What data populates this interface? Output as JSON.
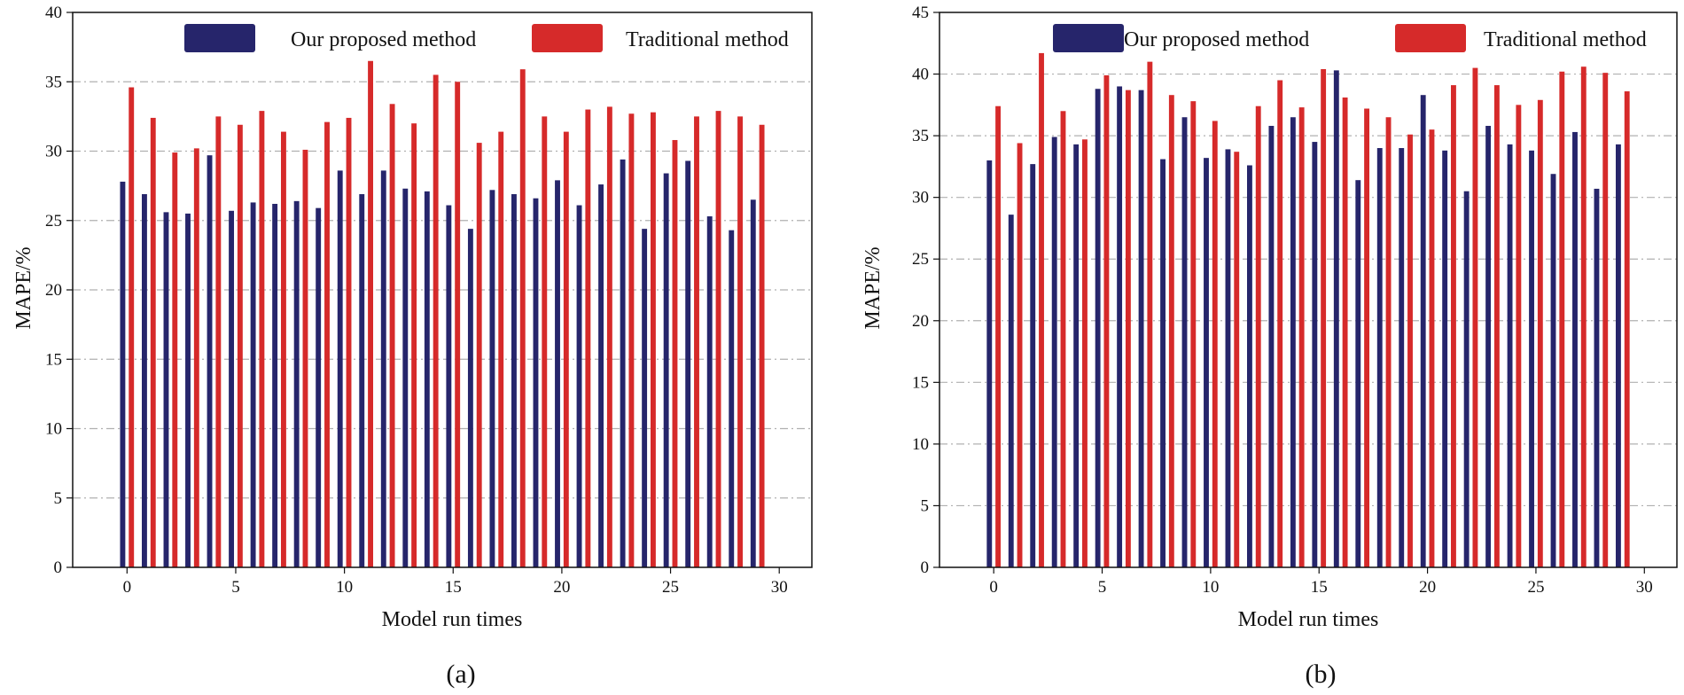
{
  "colors": {
    "proposed": "#26256b",
    "traditional": "#d62a2a",
    "grid": "#b0b0b0",
    "axis": "#111111"
  },
  "chart_data": [
    {
      "type": "bar",
      "caption": "(a)",
      "title": "",
      "xlabel": "Model run times",
      "ylabel": "MAPE/%",
      "xlim": [
        -2.5,
        31.5
      ],
      "ylim": [
        0,
        40
      ],
      "xticks": [
        0,
        5,
        10,
        15,
        20,
        25,
        30
      ],
      "yticks": [
        0,
        5,
        10,
        15,
        20,
        25,
        30,
        35,
        40
      ],
      "grid": "horizontal dash-dot",
      "legend_position": "top",
      "x": [
        0,
        1,
        2,
        3,
        4,
        5,
        6,
        7,
        8,
        9,
        10,
        11,
        12,
        13,
        14,
        15,
        16,
        17,
        18,
        19,
        20,
        21,
        22,
        23,
        24,
        25,
        26,
        27,
        28,
        29
      ],
      "series": [
        {
          "name": "Our proposed method",
          "color_key": "proposed",
          "values": [
            27.8,
            26.9,
            25.6,
            25.5,
            29.7,
            25.7,
            26.3,
            26.2,
            26.4,
            25.9,
            28.6,
            26.9,
            28.6,
            27.3,
            27.1,
            26.1,
            24.4,
            27.2,
            26.9,
            26.6,
            27.9,
            26.1,
            27.6,
            29.4,
            24.4,
            28.4,
            29.3,
            25.3,
            24.3,
            26.5
          ]
        },
        {
          "name": "Traditional method",
          "color_key": "traditional",
          "values": [
            34.6,
            32.4,
            29.9,
            30.2,
            32.5,
            31.9,
            32.9,
            31.4,
            30.1,
            32.1,
            32.4,
            36.5,
            33.4,
            32.0,
            35.5,
            35.0,
            30.6,
            31.4,
            35.9,
            32.5,
            31.4,
            33.0,
            33.2,
            32.7,
            32.8,
            30.8,
            32.5,
            32.9,
            32.5,
            31.9
          ]
        }
      ]
    },
    {
      "type": "bar",
      "caption": "(b)",
      "title": "",
      "xlabel": "Model run times",
      "ylabel": "MAPE/%",
      "xlim": [
        -2.5,
        31.5
      ],
      "ylim": [
        0,
        45
      ],
      "xticks": [
        0,
        5,
        10,
        15,
        20,
        25,
        30
      ],
      "yticks": [
        0,
        5,
        10,
        15,
        20,
        25,
        30,
        35,
        40,
        45
      ],
      "grid": "horizontal dash-dot",
      "legend_position": "top",
      "x": [
        0,
        1,
        2,
        3,
        4,
        5,
        6,
        7,
        8,
        9,
        10,
        11,
        12,
        13,
        14,
        15,
        16,
        17,
        18,
        19,
        20,
        21,
        22,
        23,
        24,
        25,
        26,
        27,
        28,
        29
      ],
      "series": [
        {
          "name": "Our proposed method",
          "color_key": "proposed",
          "values": [
            33.0,
            28.6,
            32.7,
            34.9,
            34.3,
            38.8,
            39.0,
            38.7,
            33.1,
            36.5,
            33.2,
            33.9,
            32.6,
            35.8,
            36.5,
            34.5,
            40.3,
            31.4,
            34.0,
            34.0,
            38.3,
            33.8,
            30.5,
            35.8,
            34.3,
            33.8,
            31.9,
            35.3,
            30.7,
            34.3
          ]
        },
        {
          "name": "Traditional method",
          "color_key": "traditional",
          "values": [
            37.4,
            34.4,
            41.7,
            37.0,
            34.7,
            39.9,
            38.7,
            41.0,
            38.3,
            37.8,
            36.2,
            33.7,
            37.4,
            39.5,
            37.3,
            40.4,
            38.1,
            37.2,
            36.5,
            35.1,
            35.5,
            39.1,
            40.5,
            39.1,
            37.5,
            37.9,
            40.2,
            40.6,
            40.1,
            38.6
          ]
        }
      ]
    }
  ]
}
